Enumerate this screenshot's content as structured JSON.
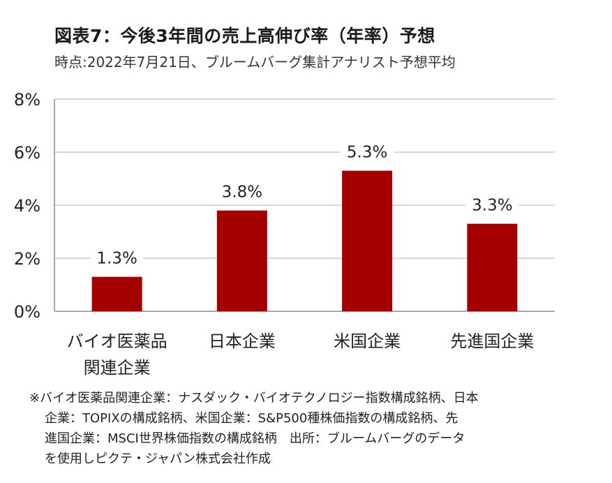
{
  "header": {
    "title": "図表7：今後3年間の売上高伸び率（年率）予想",
    "subtitle": "時点:2022年7月21日、ブルームバーグ集計アナリスト予想平均"
  },
  "chart_data": {
    "type": "bar",
    "categories": [
      "バイオ医薬品関連企業",
      "日本企業",
      "米国企業",
      "先進国企業"
    ],
    "category_lines": [
      [
        "バイオ医薬品",
        "関連企業"
      ],
      [
        "日本企業"
      ],
      [
        "米国企業"
      ],
      [
        "先進国企業"
      ]
    ],
    "values": [
      1.3,
      3.8,
      5.3,
      3.3
    ],
    "data_labels": [
      "1.3%",
      "3.8%",
      "5.3%",
      "3.3%"
    ],
    "yticks": [
      0,
      2,
      4,
      6,
      8
    ],
    "ytick_labels": [
      "0%",
      "2%",
      "4%",
      "6%",
      "8%"
    ],
    "ylim": [
      0,
      8
    ],
    "grid": true,
    "bar_color": "#a50000",
    "grid_color": "#d9d9d9"
  },
  "footnote": {
    "lines": [
      "※バイオ医薬品関連企業：ナスダック・バイオテクノロジー指数構成銘柄、日本",
      "企業：TOPIXの構成銘柄、米国企業：S&P500種株価指数の構成銘柄、先",
      "進国企業：MSCI世界株価指数の構成銘柄　出所：ブルームバーグのデータ",
      "を使用しピクテ・ジャパン株式会社作成"
    ]
  }
}
